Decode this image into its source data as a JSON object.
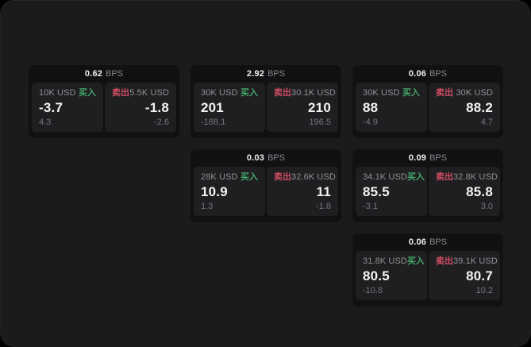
{
  "page": {
    "background": "#1b1b1d",
    "outside_background": "#000000",
    "card_background": "#111113",
    "panel_background": "#1f1f22"
  },
  "labels": {
    "bps_unit": "BPS",
    "buy": "买入",
    "sell": "卖出"
  },
  "colors": {
    "buy": "#46a56a",
    "sell": "#cf4d63",
    "value_text": "#f1f2f3",
    "muted_text": "#919194",
    "sub_text": "#77777b"
  },
  "cards": [
    {
      "bps": "0.62",
      "col": 0,
      "row": 0,
      "buy": {
        "amount": "10K USD",
        "value": "-3.7",
        "sub": "4.3"
      },
      "sell": {
        "amount": "5.5K USD",
        "value": "-1.8",
        "sub": "-2.6"
      }
    },
    {
      "bps": "2.92",
      "col": 1,
      "row": 0,
      "buy": {
        "amount": "30K USD",
        "value": "201",
        "sub": "-188.1"
      },
      "sell": {
        "amount": "30.1K USD",
        "value": "210",
        "sub": "196.5"
      }
    },
    {
      "bps": "0.06",
      "col": 2,
      "row": 0,
      "buy": {
        "amount": "30K USD",
        "value": "88",
        "sub": "-4.9"
      },
      "sell": {
        "amount": "30K USD",
        "value": "88.2",
        "sub": "4.7"
      }
    },
    {
      "bps": "0.03",
      "col": 1,
      "row": 1,
      "buy": {
        "amount": "28K USD",
        "value": "10.9",
        "sub": "1.3"
      },
      "sell": {
        "amount": "32.6K USD",
        "value": "11",
        "sub": "-1.8"
      }
    },
    {
      "bps": "0.09",
      "col": 2,
      "row": 1,
      "buy": {
        "amount": "34.1K USD",
        "value": "85.5",
        "sub": "-3.1"
      },
      "sell": {
        "amount": "32.8K USD",
        "value": "85.8",
        "sub": "3.0"
      }
    },
    {
      "bps": "0.06",
      "col": 2,
      "row": 2,
      "buy": {
        "amount": "31.8K USD",
        "value": "80.5",
        "sub": "-10.8"
      },
      "sell": {
        "amount": "39.1K USD",
        "value": "80.7",
        "sub": "10.2"
      }
    }
  ]
}
